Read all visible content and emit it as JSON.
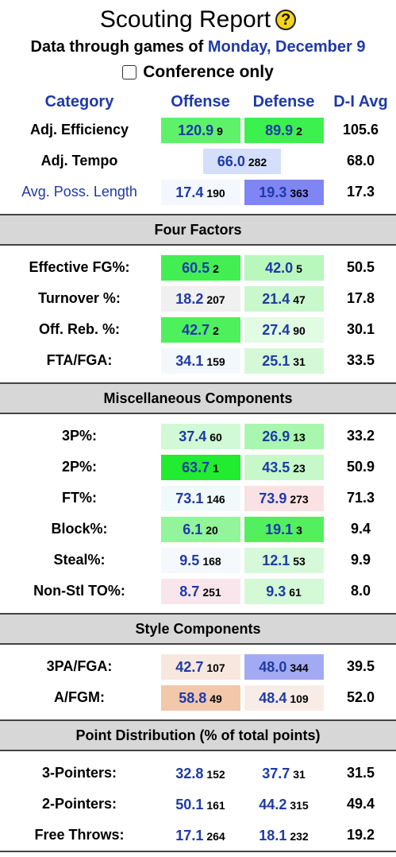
{
  "header": {
    "title": "Scouting Report",
    "help_label": "?",
    "subtitle_prefix": "Data through games of",
    "subtitle_date": "Monday, December 9",
    "conference_only_label": "Conference only"
  },
  "columns": {
    "category": "Category",
    "offense": "Offense",
    "defense": "Defense",
    "avg": "D-I Avg"
  },
  "top_rows": [
    {
      "label": "Adj. Efficiency",
      "off": "120.9",
      "off_rank": "9",
      "def": "89.9",
      "def_rank": "2",
      "avg": "105.6"
    },
    {
      "label": "Adj. Tempo",
      "tempo": "66.0",
      "tempo_rank": "282",
      "avg": "68.0"
    },
    {
      "label": "Avg. Poss. Length",
      "off": "17.4",
      "off_rank": "190",
      "def": "19.3",
      "def_rank": "363",
      "avg": "17.3"
    }
  ],
  "sections": [
    {
      "title": "Four Factors",
      "rows": [
        {
          "label": "Effective FG%:",
          "off": "60.5",
          "off_rank": "2",
          "def": "42.0",
          "def_rank": "5",
          "avg": "50.5"
        },
        {
          "label": "Turnover %:",
          "off": "18.2",
          "off_rank": "207",
          "def": "21.4",
          "def_rank": "47",
          "avg": "17.8"
        },
        {
          "label": "Off. Reb. %:",
          "off": "42.7",
          "off_rank": "2",
          "def": "27.4",
          "def_rank": "90",
          "avg": "30.1"
        },
        {
          "label": "FTA/FGA:",
          "off": "34.1",
          "off_rank": "159",
          "def": "25.1",
          "def_rank": "31",
          "avg": "33.5"
        }
      ]
    },
    {
      "title": "Miscellaneous Components",
      "rows": [
        {
          "label": "3P%:",
          "off": "37.4",
          "off_rank": "60",
          "def": "26.9",
          "def_rank": "13",
          "avg": "33.2"
        },
        {
          "label": "2P%:",
          "off": "63.7",
          "off_rank": "1",
          "def": "43.5",
          "def_rank": "23",
          "avg": "50.9"
        },
        {
          "label": "FT%:",
          "off": "73.1",
          "off_rank": "146",
          "def": "73.9",
          "def_rank": "273",
          "avg": "71.3"
        },
        {
          "label": "Block%:",
          "off": "6.1",
          "off_rank": "20",
          "def": "19.1",
          "def_rank": "3",
          "avg": "9.4"
        },
        {
          "label": "Steal%:",
          "off": "9.5",
          "off_rank": "168",
          "def": "12.1",
          "def_rank": "53",
          "avg": "9.9"
        },
        {
          "label": "Non-Stl TO%:",
          "off": "8.7",
          "off_rank": "251",
          "def": "9.3",
          "def_rank": "61",
          "avg": "8.0"
        }
      ]
    },
    {
      "title": "Style Components",
      "rows": [
        {
          "label": "3PA/FGA:",
          "off": "42.7",
          "off_rank": "107",
          "def": "48.0",
          "def_rank": "344",
          "avg": "39.5"
        },
        {
          "label": "A/FGM:",
          "off": "58.8",
          "off_rank": "49",
          "def": "48.4",
          "def_rank": "109",
          "avg": "52.0"
        }
      ]
    },
    {
      "title": "Point Distribution (% of total points)",
      "rows": [
        {
          "label": "3-Pointers:",
          "off": "32.8",
          "off_rank": "152",
          "def": "37.7",
          "def_rank": "31",
          "avg": "31.5"
        },
        {
          "label": "2-Pointers:",
          "off": "50.1",
          "off_rank": "161",
          "def": "44.2",
          "def_rank": "315",
          "avg": "49.4"
        },
        {
          "label": "Free Throws:",
          "off": "17.1",
          "off_rank": "264",
          "def": "18.1",
          "def_rank": "232",
          "avg": "19.2"
        }
      ]
    }
  ],
  "colors": {
    "link_blue": "#1f3aa6",
    "section_bg": "#d7d7d7",
    "help_icon": "#f4d41c"
  }
}
